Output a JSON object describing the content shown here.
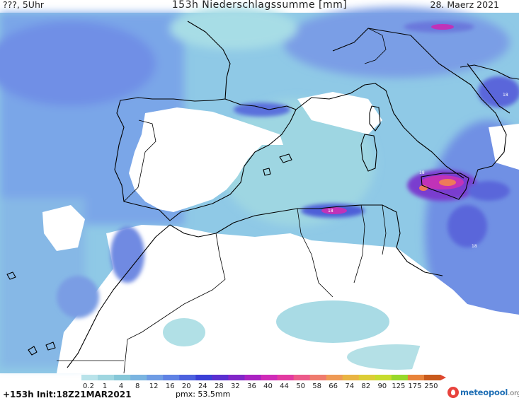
{
  "header": {
    "left": "???, 5Uhr",
    "title": "153h Niederschlagssumme [mm]",
    "date": "28. Maerz 2021"
  },
  "legend": {
    "ticks": [
      "0.2",
      "1",
      "4",
      "8",
      "12",
      "16",
      "20",
      "24",
      "28",
      "32",
      "36",
      "40",
      "44",
      "50",
      "58",
      "66",
      "74",
      "82",
      "90",
      "125",
      "175",
      "250"
    ],
    "colors": [
      "#b9e3ea",
      "#9fd6e0",
      "#86c7d8",
      "#7ab4e0",
      "#6f9ce4",
      "#5f82e4",
      "#4c61de",
      "#3a3fd6",
      "#5a2fd0",
      "#8126c8",
      "#aa22c2",
      "#cf2bb8",
      "#e23aa1",
      "#ec5a8a",
      "#ef7b6e",
      "#ee9a55",
      "#e9b443",
      "#dccd36",
      "#c7dc2d",
      "#98d82a",
      "#e8833a",
      "#c85a1c"
    ]
  },
  "footer": {
    "left": "+153h Init:18Z21MAR2021",
    "pmax": "pmx: 53.5mm"
  },
  "logo": {
    "name": "meteopool",
    "tld": ".org"
  },
  "map": {
    "region": "Western Mediterranean",
    "peak_labels": [
      "18",
      "18",
      "18",
      "18"
    ],
    "colors": {
      "light": "#a4dbe3",
      "mid": "#7fb6e6",
      "blue": "#6b8ae6",
      "deep": "#4e5fd8",
      "violet": "#7a3ccf",
      "magenta": "#c132b8",
      "peak": "#ee7a5a",
      "land_dry": "#ffffff",
      "coast": "#000000"
    }
  }
}
